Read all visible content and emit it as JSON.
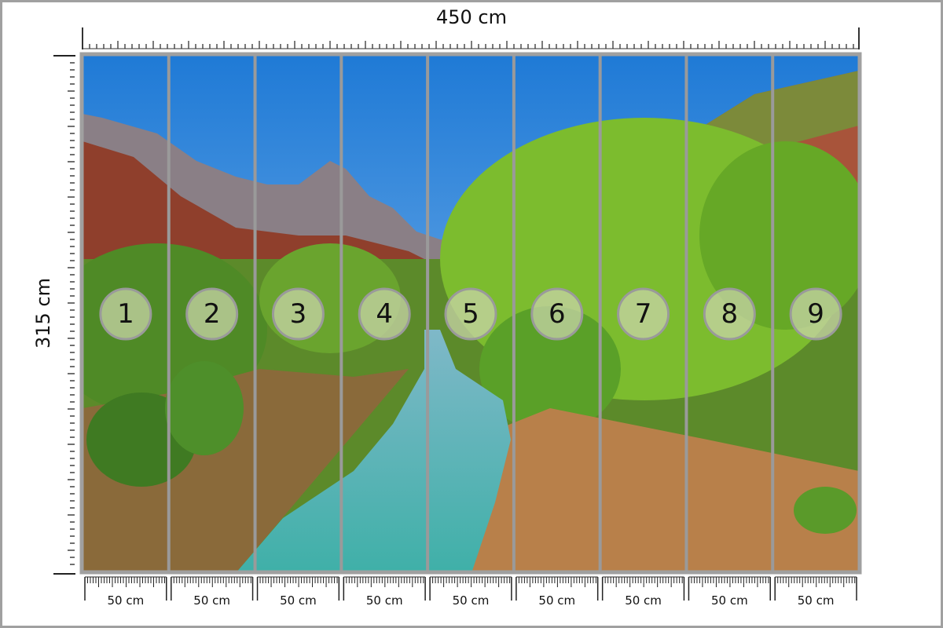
{
  "dimensions": {
    "width_label": "450 cm",
    "height_label": "315 cm"
  },
  "panel_width_label": "50 cm",
  "panels": [
    "1",
    "2",
    "3",
    "4",
    "5",
    "6",
    "7",
    "8",
    "9"
  ],
  "colors": {
    "frame": "#a0a0a0",
    "divider": "#9a9a9a",
    "sky": "#2f86d8",
    "badge": "#c8d4a8"
  }
}
